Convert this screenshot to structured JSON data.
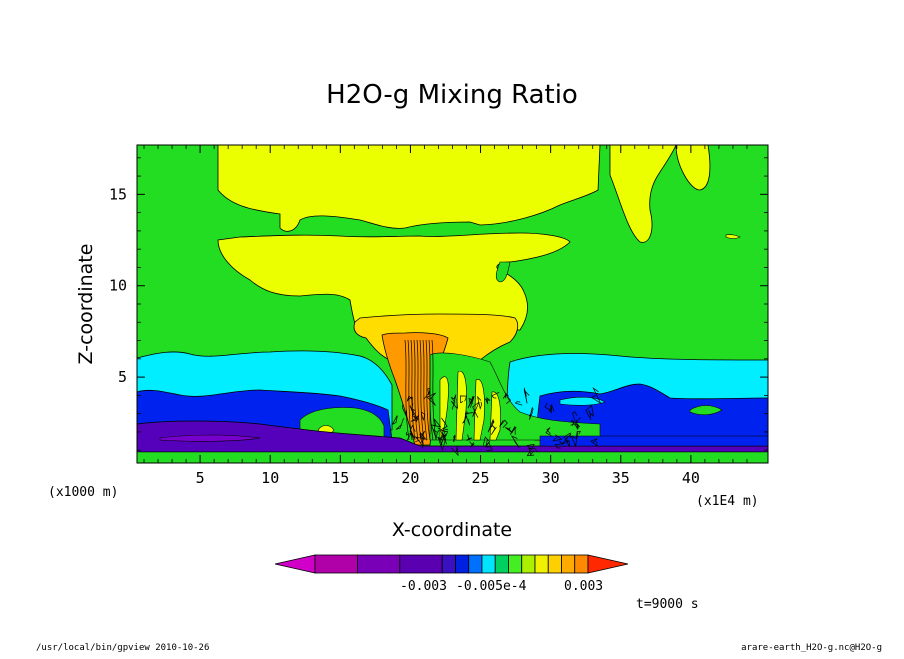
{
  "chart_data": {
    "type": "heatmap",
    "title": "H2O-g Mixing Ratio",
    "xlabel": "X-coordinate",
    "ylabel": "Z-coordinate",
    "x_unit_left": "(x1000 m)",
    "x_unit_right": "(x1E4 m)",
    "xticks": [
      "5",
      "10",
      "15",
      "20",
      "25",
      "30",
      "35",
      "40"
    ],
    "xtick_values": [
      5,
      10,
      15,
      20,
      25,
      30,
      35,
      40
    ],
    "yticks": [
      "5",
      "10",
      "15"
    ],
    "ytick_values": [
      5,
      10,
      15
    ],
    "xlim": [
      0.5,
      45.5
    ],
    "ylim": [
      0.3,
      17.7
    ],
    "time_label": "t=9000 s",
    "colorbar": {
      "labels": [
        "-0.003",
        "-0.005e-4",
        "0.003"
      ],
      "colors": [
        "#d000c8",
        "#b000a8",
        "#7a00b8",
        "#5a00b0",
        "#3a10c0",
        "#0020e0",
        "#0070ff",
        "#00e4ff",
        "#00d060",
        "#44ee22",
        "#aaf000",
        "#f0f000",
        "#ffd000",
        "#ffaa00",
        "#ff8a00",
        "#ff2800"
      ]
    },
    "layers": {
      "background": "#22dd22",
      "upper_yellow": "#ecff00",
      "lower_gold": "#ffdd00",
      "core_orange": "#ff9900",
      "cyan_band": "#00eeff",
      "blue_band": "#0022ee",
      "purple_band": "#5500bb",
      "deep_purple": "#7700cc",
      "boundary_stripe": "#00aa33"
    }
  },
  "footer": {
    "left": "/usr/local/bin/gpview  2010-10-26",
    "right": "arare-earth_H2O-g.nc@H2O-g"
  }
}
